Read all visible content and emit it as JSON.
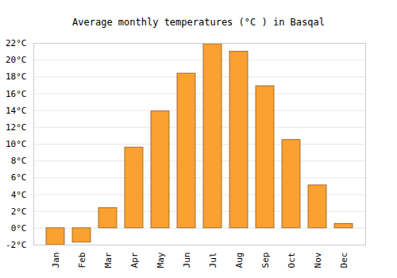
{
  "chart_data": {
    "type": "bar",
    "title": "Average monthly temperatures (°C ) in Basqal",
    "categories": [
      "Jan",
      "Feb",
      "Mar",
      "Apr",
      "May",
      "Jun",
      "Jul",
      "Aug",
      "Sep",
      "Oct",
      "Nov",
      "Dec"
    ],
    "values": [
      -2.0,
      -1.7,
      2.4,
      9.6,
      13.9,
      18.4,
      21.9,
      21.0,
      16.9,
      10.5,
      5.1,
      0.5
    ],
    "color": "#fba131",
    "ylim": [
      -2,
      22
    ],
    "yticks": [
      {
        "value": -2,
        "label": "-2°C"
      },
      {
        "value": 0,
        "label": "0°C"
      },
      {
        "value": 2,
        "label": "2°C"
      },
      {
        "value": 4,
        "label": "4°C"
      },
      {
        "value": 6,
        "label": "6°C"
      },
      {
        "value": 8,
        "label": "8°C"
      },
      {
        "value": 10,
        "label": "10°C"
      },
      {
        "value": 12,
        "label": "12°C"
      },
      {
        "value": 14,
        "label": "14°C"
      },
      {
        "value": 16,
        "label": "16°C"
      },
      {
        "value": 18,
        "label": "18°C"
      },
      {
        "value": 20,
        "label": "20°C"
      },
      {
        "value": 22,
        "label": "22°C"
      }
    ],
    "grid": true
  }
}
